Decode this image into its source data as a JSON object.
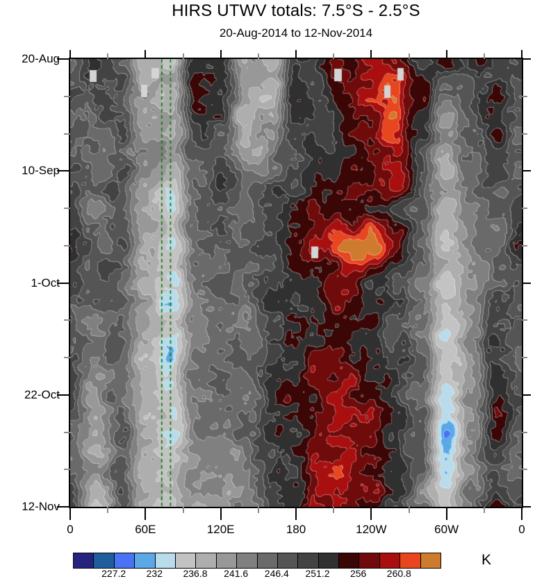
{
  "chart_data": {
    "type": "heatmap",
    "title": "HIRS UTWV totals: 7.5°S - 2.5°S",
    "subtitle": "20-Aug-2014 to 12-Nov-2014",
    "x_axis": {
      "kind": "longitude",
      "range_deg": [
        0,
        360
      ],
      "major_ticks": [
        {
          "label": "0",
          "lon": 0
        },
        {
          "label": "60E",
          "lon": 60
        },
        {
          "label": "120E",
          "lon": 120
        },
        {
          "label": "180",
          "lon": 180
        },
        {
          "label": "120W",
          "lon": 240
        },
        {
          "label": "60W",
          "lon": 300
        },
        {
          "label": "0",
          "lon": 360
        }
      ],
      "minor_ticks_lon": [
        30,
        90,
        150,
        210,
        270,
        330
      ]
    },
    "y_axis": {
      "kind": "date",
      "range_days": [
        0,
        84
      ],
      "major_ticks": [
        {
          "label": "20-Aug",
          "day": 0
        },
        {
          "label": "10-Sep",
          "day": 21
        },
        {
          "label": "1-Oct",
          "day": 42
        },
        {
          "label": "22-Oct",
          "day": 63
        },
        {
          "label": "12-Nov",
          "day": 84
        }
      ],
      "minor_ticks_day": [
        7,
        14,
        28,
        35,
        49,
        56,
        70,
        77
      ]
    },
    "colorbar": {
      "units": "K",
      "min": 222.4,
      "step": 2.4,
      "colors": [
        "#262380",
        "#1f5d9e",
        "#4a72f4",
        "#5aa8e8",
        "#b8dcec",
        "#c3c3c3",
        "#aeaeae",
        "#989898",
        "#808080",
        "#6a6a6a",
        "#555555",
        "#434343",
        "#303030",
        "#3b0606",
        "#700b0b",
        "#a90f0f",
        "#e8461e",
        "#ce7b2d"
      ],
      "labels": [
        "227.2",
        "232",
        "236.8",
        "241.6",
        "246.4",
        "251.2",
        "256",
        "260.8"
      ],
      "label_boundary_indices": [
        2,
        4,
        6,
        8,
        10,
        12,
        14,
        16
      ]
    },
    "reference_lines": {
      "color": "#0b7d0b",
      "style": "dashed",
      "dash": [
        5,
        4
      ],
      "lons": [
        73,
        80
      ]
    },
    "data_gaps": {
      "color": "#d4d4d4",
      "rects": [
        [
          28,
          16,
          10,
          17
        ],
        [
          102,
          37,
          9,
          18
        ],
        [
          117,
          13,
          11,
          15
        ],
        [
          380,
          14,
          11,
          18
        ],
        [
          471,
          13,
          9,
          18
        ],
        [
          452,
          38,
          9,
          18
        ],
        [
          347,
          270,
          10,
          17
        ]
      ]
    },
    "field": {
      "units": "K",
      "lon_start_deg": 0,
      "lon_step_deg": 20,
      "time_start": "20-Aug-2014",
      "time_step_days": 7,
      "values": [
        [
          248,
          252,
          249,
          240,
          236,
          253,
          251,
          241,
          238,
          250,
          253,
          256,
          258,
          256,
          251,
          255,
          254,
          250,
          248
        ],
        [
          247,
          249,
          250,
          239,
          237,
          255,
          252,
          240,
          237,
          252,
          250,
          255,
          260,
          262,
          253,
          243,
          249,
          255,
          247
        ],
        [
          246,
          247,
          248,
          240,
          239,
          250,
          249,
          237,
          240,
          251,
          249,
          252,
          258,
          260,
          251,
          241,
          247,
          253,
          246
        ],
        [
          247,
          246,
          249,
          241,
          238,
          248,
          250,
          243,
          246,
          250,
          252,
          254,
          257,
          259,
          250,
          240,
          246,
          249,
          247
        ],
        [
          249,
          245,
          250,
          240,
          236,
          247,
          249,
          246,
          249,
          253,
          255,
          257,
          256,
          252,
          248,
          239,
          245,
          247,
          249
        ],
        [
          253,
          246,
          248,
          239,
          235,
          246,
          248,
          247,
          250,
          254,
          258,
          262,
          264,
          256,
          247,
          238,
          244,
          246,
          253
        ],
        [
          249,
          247,
          247,
          240,
          235,
          245,
          247,
          246,
          251,
          253,
          255,
          257,
          254,
          250,
          246,
          236,
          243,
          247,
          249
        ],
        [
          248,
          244,
          246,
          239,
          234,
          244,
          246,
          244,
          250,
          252,
          254,
          256,
          253,
          249,
          245,
          235,
          242,
          250,
          248
        ],
        [
          247,
          242,
          247,
          238,
          233,
          243,
          246,
          247,
          251,
          253,
          255,
          256,
          254,
          251,
          246,
          234,
          242,
          253,
          247
        ],
        [
          248,
          242,
          246,
          239,
          235,
          244,
          245,
          246,
          252,
          254,
          256,
          258,
          255,
          252,
          247,
          233,
          243,
          255,
          248
        ],
        [
          246,
          241,
          247,
          238,
          234,
          243,
          244,
          245,
          251,
          253,
          257,
          259,
          256,
          253,
          246,
          230,
          242,
          253,
          246
        ],
        [
          247,
          240,
          248,
          237,
          235,
          242,
          243,
          244,
          250,
          254,
          258,
          260,
          257,
          252,
          245,
          233,
          244,
          251,
          247
        ],
        [
          249,
          238,
          247,
          238,
          234,
          241,
          242,
          243,
          249,
          255,
          257,
          259,
          255,
          251,
          244,
          235,
          245,
          253,
          249
        ]
      ]
    },
    "texture": {
      "octaves": [
        {
          "scale": 27,
          "amp": 2.7
        },
        {
          "scale": 12,
          "amp": 1.5
        },
        {
          "scale": 6,
          "amp": 0.8
        }
      ]
    }
  }
}
